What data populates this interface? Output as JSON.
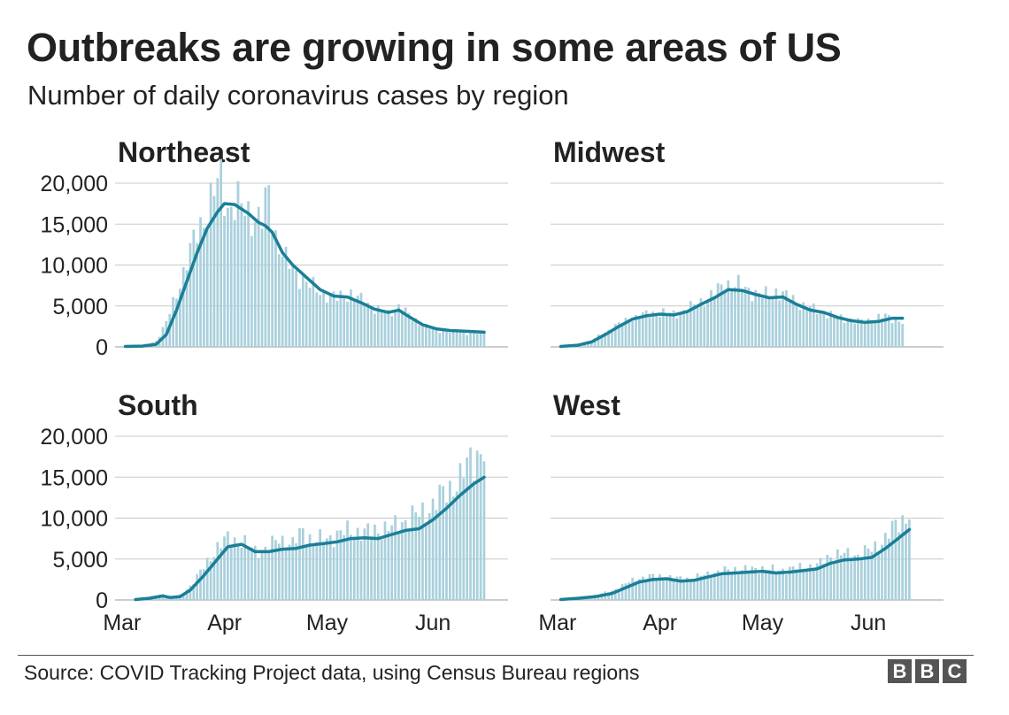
{
  "title": "Outbreaks are growing in some areas of US",
  "subtitle": "Number of daily coronavirus cases by region",
  "source": "Source: COVID Tracking Project data, using Census Bureau regions",
  "logo": [
    "B",
    "B",
    "C"
  ],
  "colors": {
    "bars": "#a9d0dc",
    "line": "#1a7f97",
    "grid": "#c8c8c8",
    "text": "#222222"
  },
  "chart_data": [
    {
      "type": "bar+line",
      "title": "Northeast",
      "y_ticks": [
        "20,000",
        "15,000",
        "10,000",
        "5,000",
        "0"
      ],
      "ylim": [
        0,
        20000
      ],
      "x_ticks": [],
      "x_range_days": [
        0,
        115
      ],
      "line_points": [
        [
          3,
          50
        ],
        [
          8,
          100
        ],
        [
          12,
          300
        ],
        [
          15,
          1500
        ],
        [
          18,
          4500
        ],
        [
          21,
          8000
        ],
        [
          24,
          11500
        ],
        [
          27,
          14500
        ],
        [
          30,
          16500
        ],
        [
          32,
          17500
        ],
        [
          35,
          17400
        ],
        [
          39,
          16300
        ],
        [
          42,
          15200
        ],
        [
          44,
          14800
        ],
        [
          46,
          14000
        ],
        [
          49,
          11500
        ],
        [
          52,
          10000
        ],
        [
          56,
          8500
        ],
        [
          60,
          7000
        ],
        [
          64,
          6200
        ],
        [
          68,
          6100
        ],
        [
          72,
          5400
        ],
        [
          76,
          4600
        ],
        [
          80,
          4200
        ],
        [
          83,
          4500
        ],
        [
          86,
          3700
        ],
        [
          90,
          2700
        ],
        [
          94,
          2200
        ],
        [
          98,
          2000
        ],
        [
          103,
          1900
        ],
        [
          108,
          1800
        ]
      ],
      "bar_keypoints": [
        [
          3,
          50
        ],
        [
          8,
          200
        ],
        [
          12,
          700
        ],
        [
          15,
          3000
        ],
        [
          18,
          6500
        ],
        [
          21,
          10500
        ],
        [
          24,
          14000
        ],
        [
          27,
          16500
        ],
        [
          29,
          19000
        ],
        [
          31,
          20500
        ],
        [
          33,
          17000
        ],
        [
          36,
          17500
        ],
        [
          40,
          16000
        ],
        [
          43,
          15500
        ],
        [
          45,
          19000
        ],
        [
          47,
          13500
        ],
        [
          50,
          10500
        ],
        [
          53,
          9000
        ],
        [
          57,
          7500
        ],
        [
          61,
          6500
        ],
        [
          65,
          6000
        ],
        [
          69,
          6500
        ],
        [
          73,
          5500
        ],
        [
          77,
          4500
        ],
        [
          80,
          4000
        ],
        [
          83,
          5000
        ],
        [
          87,
          3500
        ],
        [
          91,
          2500
        ],
        [
          95,
          2000
        ],
        [
          100,
          1800
        ],
        [
          108,
          1700
        ]
      ]
    },
    {
      "type": "bar+line",
      "title": "Midwest",
      "y_ticks": [],
      "ylim": [
        0,
        20000
      ],
      "x_ticks": [],
      "x_range_days": [
        0,
        115
      ],
      "line_points": [
        [
          3,
          50
        ],
        [
          8,
          200
        ],
        [
          12,
          600
        ],
        [
          16,
          1500
        ],
        [
          20,
          2500
        ],
        [
          24,
          3400
        ],
        [
          28,
          3800
        ],
        [
          32,
          4000
        ],
        [
          36,
          3900
        ],
        [
          40,
          4300
        ],
        [
          44,
          5200
        ],
        [
          48,
          6000
        ],
        [
          52,
          7000
        ],
        [
          56,
          6900
        ],
        [
          60,
          6400
        ],
        [
          64,
          6000
        ],
        [
          68,
          6100
        ],
        [
          72,
          5200
        ],
        [
          76,
          4500
        ],
        [
          80,
          4200
        ],
        [
          84,
          3600
        ],
        [
          88,
          3200
        ],
        [
          92,
          3000
        ],
        [
          96,
          3100
        ],
        [
          100,
          3500
        ],
        [
          103,
          3500
        ]
      ],
      "bar_keypoints": [
        [
          3,
          50
        ],
        [
          8,
          300
        ],
        [
          12,
          800
        ],
        [
          16,
          1800
        ],
        [
          20,
          2800
        ],
        [
          24,
          3500
        ],
        [
          28,
          4000
        ],
        [
          32,
          4200
        ],
        [
          36,
          4000
        ],
        [
          40,
          4600
        ],
        [
          44,
          5500
        ],
        [
          48,
          6500
        ],
        [
          51,
          7800
        ],
        [
          55,
          7500
        ],
        [
          58,
          7000
        ],
        [
          62,
          6200
        ],
        [
          66,
          6800
        ],
        [
          70,
          6000
        ],
        [
          74,
          5000
        ],
        [
          78,
          4500
        ],
        [
          82,
          3900
        ],
        [
          86,
          3400
        ],
        [
          90,
          3100
        ],
        [
          94,
          3300
        ],
        [
          98,
          3800
        ],
        [
          103,
          3000
        ]
      ]
    },
    {
      "type": "bar+line",
      "title": "South",
      "y_ticks": [
        "20,000",
        "15,000",
        "10,000",
        "5,000",
        "0"
      ],
      "ylim": [
        0,
        20000
      ],
      "x_ticks": [
        "Mar",
        "Apr",
        "May",
        "Jun"
      ],
      "x_range_days": [
        0,
        115
      ],
      "line_points": [
        [
          6,
          50
        ],
        [
          10,
          200
        ],
        [
          14,
          500
        ],
        [
          16,
          300
        ],
        [
          19,
          400
        ],
        [
          22,
          1200
        ],
        [
          26,
          3000
        ],
        [
          30,
          5000
        ],
        [
          33,
          6500
        ],
        [
          37,
          6800
        ],
        [
          41,
          5900
        ],
        [
          45,
          5900
        ],
        [
          49,
          6200
        ],
        [
          53,
          6300
        ],
        [
          57,
          6700
        ],
        [
          61,
          6900
        ],
        [
          65,
          7100
        ],
        [
          69,
          7500
        ],
        [
          73,
          7600
        ],
        [
          77,
          7500
        ],
        [
          81,
          8000
        ],
        [
          85,
          8500
        ],
        [
          89,
          8700
        ],
        [
          93,
          9800
        ],
        [
          97,
          11200
        ],
        [
          101,
          12800
        ],
        [
          105,
          14200
        ],
        [
          108,
          15000
        ]
      ],
      "bar_keypoints": [
        [
          6,
          100
        ],
        [
          10,
          300
        ],
        [
          14,
          700
        ],
        [
          16,
          400
        ],
        [
          19,
          600
        ],
        [
          22,
          1700
        ],
        [
          26,
          4000
        ],
        [
          30,
          6500
        ],
        [
          33,
          7500
        ],
        [
          37,
          7200
        ],
        [
          41,
          6000
        ],
        [
          45,
          6400
        ],
        [
          48,
          7500
        ],
        [
          52,
          6800
        ],
        [
          55,
          8500
        ],
        [
          58,
          7200
        ],
        [
          62,
          7500
        ],
        [
          65,
          8000
        ],
        [
          69,
          8500
        ],
        [
          73,
          8200
        ],
        [
          77,
          8600
        ],
        [
          81,
          8800
        ],
        [
          85,
          9800
        ],
        [
          89,
          10500
        ],
        [
          93,
          11500
        ],
        [
          97,
          13500
        ],
        [
          101,
          14500
        ],
        [
          104,
          17500
        ],
        [
          108,
          18000
        ]
      ]
    },
    {
      "type": "bar+line",
      "title": "West",
      "y_ticks": [],
      "ylim": [
        0,
        20000
      ],
      "x_ticks": [
        "Mar",
        "Apr",
        "May",
        "Jun"
      ],
      "x_range_days": [
        0,
        115
      ],
      "line_points": [
        [
          3,
          50
        ],
        [
          8,
          200
        ],
        [
          13,
          400
        ],
        [
          18,
          800
        ],
        [
          22,
          1500
        ],
        [
          26,
          2200
        ],
        [
          30,
          2500
        ],
        [
          34,
          2600
        ],
        [
          38,
          2300
        ],
        [
          42,
          2400
        ],
        [
          46,
          2800
        ],
        [
          50,
          3200
        ],
        [
          54,
          3300
        ],
        [
          58,
          3400
        ],
        [
          62,
          3500
        ],
        [
          66,
          3300
        ],
        [
          70,
          3400
        ],
        [
          74,
          3600
        ],
        [
          78,
          3800
        ],
        [
          82,
          4500
        ],
        [
          86,
          4900
        ],
        [
          90,
          5000
        ],
        [
          94,
          5200
        ],
        [
          98,
          6300
        ],
        [
          102,
          7600
        ],
        [
          105,
          8600
        ]
      ],
      "bar_keypoints": [
        [
          3,
          100
        ],
        [
          8,
          300
        ],
        [
          13,
          600
        ],
        [
          18,
          1100
        ],
        [
          22,
          2000
        ],
        [
          26,
          2700
        ],
        [
          30,
          2900
        ],
        [
          34,
          2800
        ],
        [
          38,
          2600
        ],
        [
          42,
          2700
        ],
        [
          46,
          3200
        ],
        [
          50,
          3500
        ],
        [
          54,
          3800
        ],
        [
          58,
          3700
        ],
        [
          62,
          3900
        ],
        [
          66,
          3600
        ],
        [
          70,
          3800
        ],
        [
          74,
          4000
        ],
        [
          78,
          4200
        ],
        [
          82,
          5500
        ],
        [
          86,
          5600
        ],
        [
          90,
          5500
        ],
        [
          94,
          6200
        ],
        [
          98,
          7500
        ],
        [
          101,
          9200
        ],
        [
          105,
          10500
        ]
      ]
    }
  ]
}
